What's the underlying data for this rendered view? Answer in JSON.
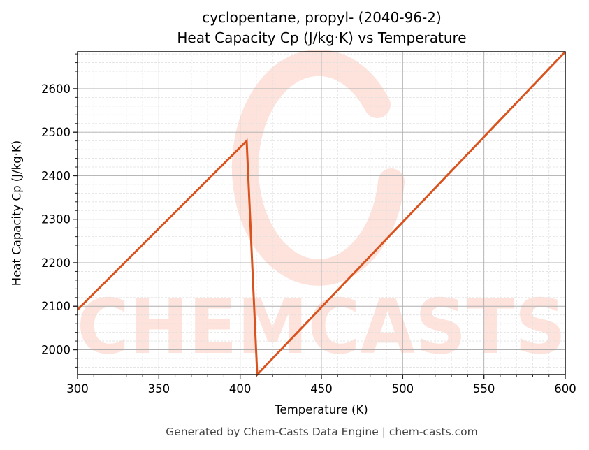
{
  "chart_data": {
    "type": "line",
    "title": "cyclopentane, propyl- (2040-96-2)",
    "subtitle": "Heat Capacity Cp (J/kg·K) vs Temperature",
    "xlabel": "Temperature (K)",
    "ylabel": "Heat Capacity Cp (J/kg·K)",
    "xlim": [
      300,
      600
    ],
    "ylim": [
      1943,
      2685
    ],
    "xticks": [
      300,
      350,
      400,
      450,
      500,
      550,
      600
    ],
    "yticks": [
      2000,
      2100,
      2200,
      2300,
      2400,
      2500,
      2600
    ],
    "grid": true,
    "legend": null,
    "series": [
      {
        "name": "Heat Capacity Cp",
        "color": "#d9531e",
        "x": [
          300,
          404,
          410.5,
          600
        ],
        "y": [
          2092,
          2480,
          1943,
          2685
        ]
      }
    ],
    "watermark": "CHEMCASTS"
  },
  "footer": "Generated by Chem-Casts Data Engine | chem-casts.com",
  "colors": {
    "line": "#d9531e",
    "watermark": "#fde3dc",
    "major_grid": "#b0b0b0",
    "minor_grid": "#e0e0e0"
  }
}
